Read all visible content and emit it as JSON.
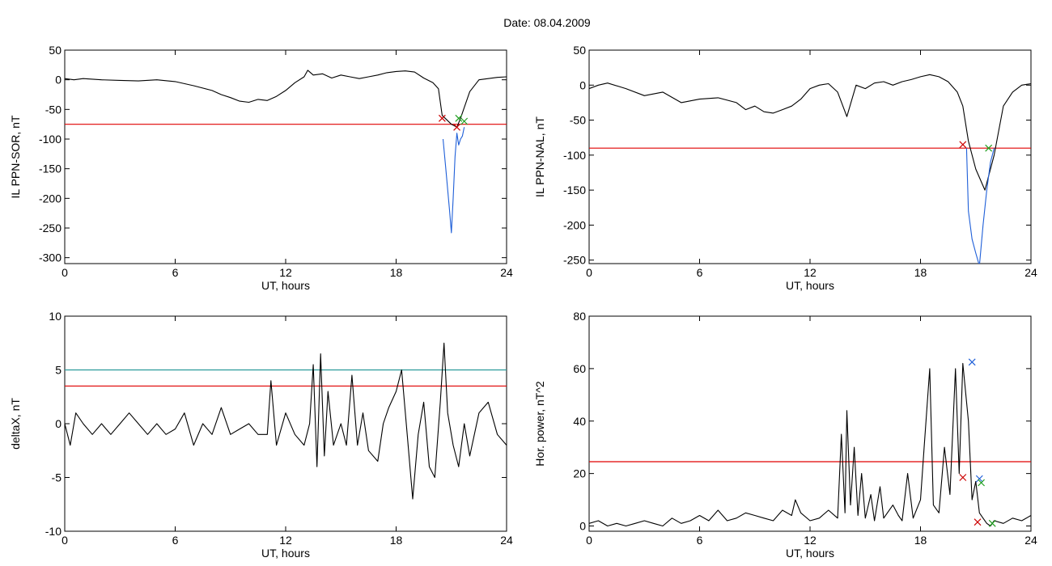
{
  "figure_title": "Date:  08.04.2009",
  "chart_data": [
    {
      "type": "line",
      "panel": "top-left",
      "xlabel": "UT, hours",
      "ylabel": "IL PPN-SOR, nT",
      "xlim": [
        0,
        24
      ],
      "ylim": [
        -310,
        50
      ],
      "xticks": [
        0,
        6,
        12,
        18,
        24
      ],
      "yticks": [
        50,
        0,
        -50,
        -100,
        -150,
        -200,
        -250,
        -300
      ],
      "threshold": -75,
      "series": [
        {
          "color": "#000000",
          "x": [
            0,
            0.5,
            1,
            2,
            3,
            4,
            5,
            6,
            7,
            8,
            8.5,
            9,
            9.5,
            10,
            10.5,
            11,
            11.5,
            12,
            12.5,
            13,
            13.2,
            13.5,
            14,
            14.5,
            15,
            15.5,
            16,
            16.5,
            17,
            17.5,
            18,
            18.5,
            19,
            19.5,
            20,
            20.3,
            20.5,
            21,
            21.3,
            21.5,
            22,
            22.5,
            23,
            23.5,
            24
          ],
          "y": [
            2,
            0,
            2,
            0,
            -1,
            -2,
            0,
            -3,
            -10,
            -18,
            -25,
            -30,
            -36,
            -38,
            -33,
            -35,
            -28,
            -18,
            -5,
            5,
            16,
            8,
            10,
            3,
            8,
            5,
            2,
            5,
            8,
            12,
            14,
            15,
            13,
            3,
            -5,
            -15,
            -60,
            -75,
            -80,
            -65,
            -20,
            0,
            2,
            4,
            5
          ]
        },
        {
          "color": "#1f5fd8",
          "x": [
            20.55,
            20.7,
            20.9,
            21.0,
            21.1,
            21.2,
            21.3,
            21.4,
            21.5,
            21.6,
            21.7
          ],
          "y": [
            -100,
            -150,
            -220,
            -258,
            -200,
            -130,
            -90,
            -110,
            -100,
            -95,
            -80
          ]
        }
      ],
      "markers": [
        {
          "x": 20.5,
          "y": -65,
          "color": "#cc0000"
        },
        {
          "x": 21.3,
          "y": -80,
          "color": "#cc0000"
        },
        {
          "x": 21.4,
          "y": -65,
          "color": "#1f9f1f"
        },
        {
          "x": 21.7,
          "y": -70,
          "color": "#1f9f1f"
        }
      ]
    },
    {
      "type": "line",
      "panel": "top-right",
      "xlabel": "UT, hours",
      "ylabel": "IL PPN-NAL, nT",
      "xlim": [
        0,
        24
      ],
      "ylim": [
        -255,
        50
      ],
      "xticks": [
        0,
        6,
        12,
        18,
        24
      ],
      "yticks": [
        50,
        0,
        -50,
        -100,
        -150,
        -200,
        -250
      ],
      "threshold": -90,
      "series": [
        {
          "color": "#000000",
          "x": [
            0,
            0.5,
            1,
            2,
            3,
            4,
            5,
            6,
            7,
            8,
            8.5,
            9,
            9.5,
            10,
            10.5,
            11,
            11.5,
            12,
            12.5,
            13,
            13.5,
            14,
            14.5,
            15,
            15.5,
            16,
            16.5,
            17,
            17.5,
            18,
            18.5,
            19,
            19.5,
            20,
            20.3,
            20.6,
            21,
            21.5,
            22,
            22.5,
            23,
            23.5,
            24
          ],
          "y": [
            -5,
            0,
            3,
            -5,
            -15,
            -10,
            -25,
            -20,
            -18,
            -25,
            -35,
            -30,
            -38,
            -40,
            -35,
            -30,
            -20,
            -5,
            0,
            2,
            -10,
            -45,
            0,
            -5,
            3,
            5,
            0,
            5,
            8,
            12,
            15,
            12,
            5,
            -10,
            -30,
            -80,
            -120,
            -150,
            -100,
            -30,
            -10,
            0,
            2
          ]
        },
        {
          "color": "#1f5fd8",
          "x": [
            20.5,
            20.6,
            20.8,
            21.0,
            21.2,
            21.4,
            21.6,
            21.8,
            22.0
          ],
          "y": [
            -90,
            -180,
            -220,
            -240,
            -258,
            -200,
            -150,
            -110,
            -90
          ]
        }
      ],
      "markers": [
        {
          "x": 20.3,
          "y": -85,
          "color": "#cc0000"
        },
        {
          "x": 21.7,
          "y": -90,
          "color": "#1f9f1f"
        }
      ]
    },
    {
      "type": "line",
      "panel": "bottom-left",
      "xlabel": "UT, hours",
      "ylabel": "deltaX, nT",
      "xlim": [
        0,
        24
      ],
      "ylim": [
        -10,
        10
      ],
      "xticks": [
        0,
        6,
        12,
        18,
        24
      ],
      "yticks": [
        10,
        5,
        0,
        -5,
        -10
      ],
      "threshold": 3.5,
      "threshold2": 5,
      "series": [
        {
          "color": "#000000",
          "x": [
            0,
            0.3,
            0.6,
            1,
            1.5,
            2,
            2.5,
            3,
            3.5,
            4,
            4.5,
            5,
            5.5,
            6,
            6.5,
            7,
            7.5,
            8,
            8.5,
            9,
            9.5,
            10,
            10.5,
            11,
            11.2,
            11.5,
            12,
            12.5,
            13,
            13.3,
            13.5,
            13.7,
            13.9,
            14.1,
            14.3,
            14.6,
            15,
            15.3,
            15.6,
            15.9,
            16.2,
            16.5,
            17,
            17.3,
            17.6,
            18,
            18.3,
            18.6,
            18.9,
            19.2,
            19.5,
            19.8,
            20.1,
            20.4,
            20.6,
            20.8,
            21.1,
            21.4,
            21.7,
            22,
            22.5,
            23,
            23.5,
            24
          ],
          "y": [
            0,
            -2,
            1,
            0,
            -1,
            0,
            -1,
            0,
            1,
            0,
            -1,
            0,
            -1,
            -0.5,
            1,
            -2,
            0,
            -1,
            1.5,
            -1,
            -0.5,
            0,
            -1,
            -1,
            4,
            -2,
            1,
            -1,
            -2,
            0,
            5.5,
            -4,
            6.5,
            -3,
            3,
            -2,
            0,
            -2,
            4.5,
            -2,
            1,
            -2.5,
            -3.5,
            0,
            1.5,
            3,
            5,
            -1,
            -7,
            -1,
            2,
            -4,
            -5,
            2,
            7.5,
            1,
            -2,
            -4,
            0,
            -3,
            1,
            2,
            -1,
            -2
          ]
        }
      ],
      "markers": []
    },
    {
      "type": "line",
      "panel": "bottom-right",
      "xlabel": "UT, hours",
      "ylabel": "Hor. power, nT^2",
      "xlim": [
        0,
        24
      ],
      "ylim": [
        -2,
        80
      ],
      "xticks": [
        0,
        6,
        12,
        18,
        24
      ],
      "yticks": [
        80,
        60,
        40,
        20,
        0
      ],
      "threshold": 24.5,
      "series": [
        {
          "color": "#000000",
          "x": [
            0,
            0.5,
            1,
            1.5,
            2,
            2.5,
            3,
            3.5,
            4,
            4.5,
            5,
            5.5,
            6,
            6.5,
            7,
            7.5,
            8,
            8.5,
            9,
            9.5,
            10,
            10.5,
            11,
            11.2,
            11.5,
            12,
            12.5,
            13,
            13.5,
            13.7,
            13.9,
            14.0,
            14.2,
            14.4,
            14.6,
            14.8,
            15,
            15.3,
            15.5,
            15.8,
            16,
            16.5,
            16.8,
            17,
            17.3,
            17.6,
            18,
            18.2,
            18.5,
            18.7,
            19,
            19.3,
            19.6,
            19.9,
            20.1,
            20.3,
            20.6,
            20.8,
            21.0,
            21.2,
            21.4,
            21.6,
            21.8,
            22,
            22.5,
            23,
            23.5,
            24
          ],
          "y": [
            1,
            2,
            0,
            1,
            0,
            1,
            2,
            1,
            0,
            3,
            1,
            2,
            4,
            2,
            6,
            2,
            3,
            5,
            4,
            3,
            2,
            6,
            4,
            10,
            5,
            2,
            3,
            6,
            3,
            35,
            5,
            44,
            8,
            30,
            4,
            20,
            3,
            12,
            2,
            15,
            3,
            8,
            4,
            2,
            20,
            3,
            10,
            30,
            60,
            8,
            5,
            30,
            12,
            60,
            20,
            62,
            40,
            10,
            17,
            5,
            3,
            1,
            0,
            2,
            1,
            3,
            2,
            4
          ]
        }
      ],
      "markers": [
        {
          "x": 20.3,
          "y": 18.5,
          "color": "#cc0000"
        },
        {
          "x": 20.8,
          "y": 62.5,
          "color": "#1f5fd8"
        },
        {
          "x": 21.2,
          "y": 18,
          "color": "#1f5fd8"
        },
        {
          "x": 21.3,
          "y": 16.5,
          "color": "#1f9f1f"
        },
        {
          "x": 21.1,
          "y": 1.5,
          "color": "#cc0000"
        },
        {
          "x": 21.9,
          "y": 1,
          "color": "#1f9f1f"
        }
      ]
    }
  ]
}
